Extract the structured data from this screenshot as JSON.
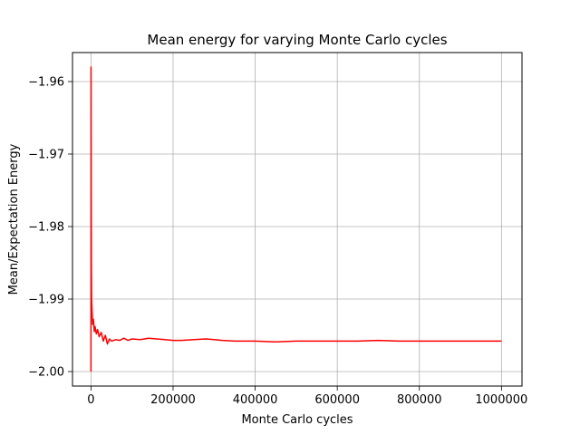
{
  "chart_data": {
    "type": "line",
    "title": "Mean energy for varying Monte Carlo cycles",
    "xlabel": "Monte Carlo cycles",
    "ylabel": "Mean/Expectation Energy",
    "xlim": [
      -45000,
      1050000
    ],
    "ylim": [
      -2.002,
      -1.956
    ],
    "xticks": [
      0,
      200000,
      400000,
      600000,
      800000,
      1000000
    ],
    "xtick_labels": [
      "0",
      "200000",
      "400000",
      "600000",
      "800000",
      "1000000"
    ],
    "yticks": [
      -2.0,
      -1.99,
      -1.98,
      -1.97,
      -1.96
    ],
    "ytick_labels": [
      "−2.00",
      "−1.99",
      "−1.98",
      "−1.97",
      "−1.96"
    ],
    "grid": true,
    "line_color": "#ff0000",
    "series": [
      {
        "x": [
          0,
          100,
          300,
          600,
          1000,
          1500,
          2500,
          4000,
          6000,
          8000,
          10000,
          13000,
          16000,
          20000,
          25000,
          30000,
          35000,
          40000,
          45000,
          50000,
          60000,
          70000,
          80000,
          90000,
          100000,
          120000,
          140000,
          160000,
          180000,
          200000,
          220000,
          250000,
          280000,
          300000,
          320000,
          350000,
          400000,
          450000,
          500000,
          550000,
          600000,
          650000,
          700000,
          750000,
          800000,
          850000,
          900000,
          950000,
          1000000
        ],
        "y": [
          -2.0,
          -1.958,
          -1.96,
          -1.975,
          -1.985,
          -1.99,
          -1.9915,
          -1.9935,
          -1.9928,
          -1.9945,
          -1.9938,
          -1.9948,
          -1.9942,
          -1.9952,
          -1.9946,
          -1.9958,
          -1.995,
          -1.9962,
          -1.9955,
          -1.9958,
          -1.9956,
          -1.9957,
          -1.9954,
          -1.9957,
          -1.9955,
          -1.9956,
          -1.9954,
          -1.9955,
          -1.9956,
          -1.9957,
          -1.9957,
          -1.9956,
          -1.9955,
          -1.9956,
          -1.9957,
          -1.9958,
          -1.9958,
          -1.9959,
          -1.9958,
          -1.9958,
          -1.9958,
          -1.9958,
          -1.9957,
          -1.9958,
          -1.9958,
          -1.9958,
          -1.9958,
          -1.9958,
          -1.9958
        ]
      }
    ]
  }
}
